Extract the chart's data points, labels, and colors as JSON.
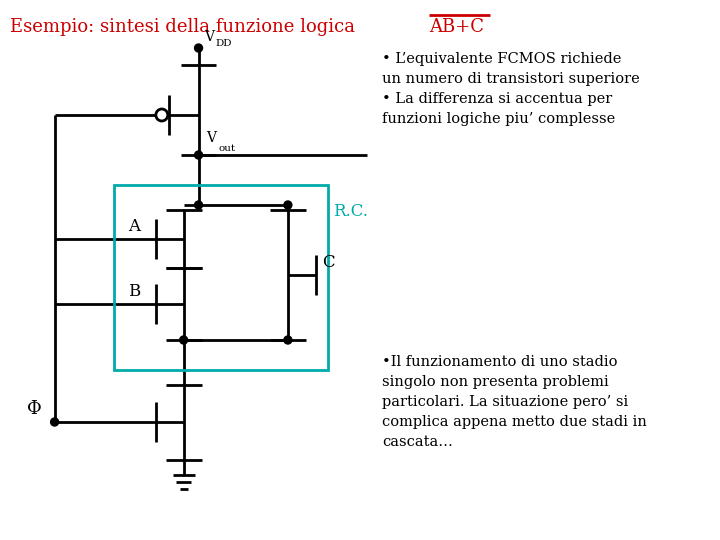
{
  "bg_color": "#ffffff",
  "title_color": "#cc0000",
  "circuit_color": "#000000",
  "rc_box_color": "#00aaaa",
  "overline_text": "AB+C",
  "title_prefix": "Esempio: sintesi della funzione logica ",
  "bullet_text1_lines": [
    "• L’equivalente FCMOS richiede",
    "un numero di transistori superiore",
    "• La differenza si accentua per",
    "funzioni logiche piu’ complesse"
  ],
  "bullet_text2_lines": [
    "•Il funzionamento di uno stadio",
    "singolo non presenta problemi",
    "particolari. La situazione pero’ si",
    "complica appena metto due stadi in",
    "cascata…"
  ],
  "label_A": "A",
  "label_B": "B",
  "label_C": "C",
  "label_Phi": "Φ",
  "label_RC": "R.C.",
  "label_VDD": "V",
  "label_DD": "DD",
  "label_Vout": "V",
  "label_out": "out"
}
